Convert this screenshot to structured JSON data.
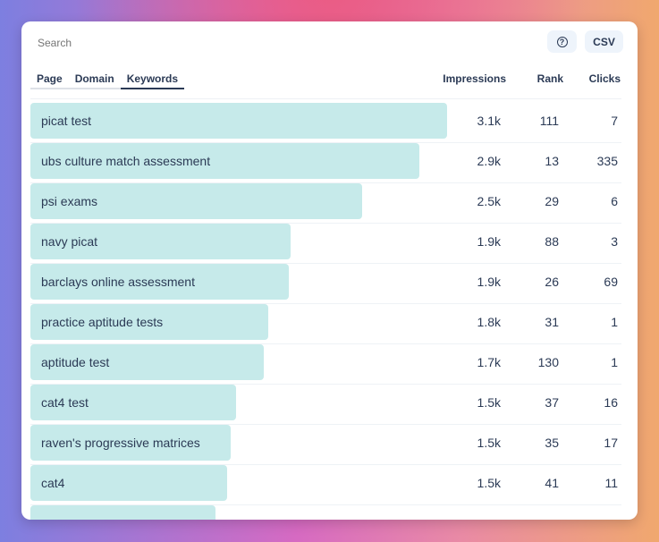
{
  "search": {
    "placeholder": "Search"
  },
  "buttons": {
    "help_icon": "question-circle-icon",
    "help_glyph": "?",
    "csv_label": "CSV"
  },
  "tabs": [
    {
      "label": "Page",
      "active": false
    },
    {
      "label": "Domain",
      "active": false
    },
    {
      "label": "Keywords",
      "active": true
    }
  ],
  "columns": {
    "impressions": "Impressions",
    "rank": "Rank",
    "clicks": "Clicks"
  },
  "colors": {
    "bar": "#c6eaea",
    "text": "#2b3a55"
  },
  "rows": [
    {
      "keyword": "picat test",
      "impressions": "3.1k",
      "rank": "111",
      "clicks": "7",
      "bar_fraction": 1.0
    },
    {
      "keyword": "ubs culture match assessment",
      "impressions": "2.9k",
      "rank": "13",
      "clicks": "335",
      "bar_fraction": 0.933
    },
    {
      "keyword": "psi exams",
      "impressions": "2.5k",
      "rank": "29",
      "clicks": "6",
      "bar_fraction": 0.796
    },
    {
      "keyword": "navy picat",
      "impressions": "1.9k",
      "rank": "88",
      "clicks": "3",
      "bar_fraction": 0.624
    },
    {
      "keyword": "barclays online assessment",
      "impressions": "1.9k",
      "rank": "26",
      "clicks": "69",
      "bar_fraction": 0.62
    },
    {
      "keyword": "practice aptitude tests",
      "impressions": "1.8k",
      "rank": "31",
      "clicks": "1",
      "bar_fraction": 0.571
    },
    {
      "keyword": "aptitude test",
      "impressions": "1.7k",
      "rank": "130",
      "clicks": "1",
      "bar_fraction": 0.56
    },
    {
      "keyword": "cat4 test",
      "impressions": "1.5k",
      "rank": "37",
      "clicks": "16",
      "bar_fraction": 0.494
    },
    {
      "keyword": "raven's progressive matrices",
      "impressions": "1.5k",
      "rank": "35",
      "clicks": "17",
      "bar_fraction": 0.481
    },
    {
      "keyword": "cat4",
      "impressions": "1.5k",
      "rank": "41",
      "clicks": "11",
      "bar_fraction": 0.472
    },
    {
      "keyword": "",
      "impressions": "",
      "rank": "",
      "clicks": "",
      "bar_fraction": 0.444
    }
  ]
}
